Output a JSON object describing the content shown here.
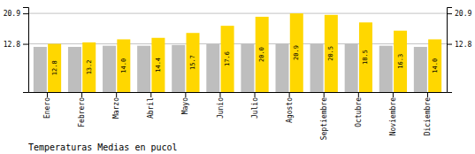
{
  "chart_data": {
    "type": "bar",
    "title": "Temperaturas Medias en pucol",
    "categories": [
      "Enero",
      "Febrero",
      "Marzo",
      "Abril",
      "Mayo",
      "Junio",
      "Julio",
      "Agosto",
      "Septiembre",
      "Octubre",
      "Noviembre",
      "Diciembre"
    ],
    "series": [
      {
        "color": "#BEBEBE",
        "values": [
          12.0,
          12.0,
          12.3,
          12.3,
          12.5,
          12.7,
          12.8,
          12.8,
          12.8,
          12.8,
          12.3,
          12.0
        ]
      },
      {
        "color": "#FFD700",
        "values": [
          12.8,
          13.2,
          14.0,
          14.4,
          15.7,
          17.6,
          20.0,
          20.9,
          20.5,
          18.5,
          16.3,
          14.0
        ],
        "data_labels": true,
        "value_labels": [
          "12.8",
          "13.2",
          "14.0",
          "14.4",
          "15.7",
          "17.6",
          "20.0",
          "20.9",
          "20.5",
          "18.5",
          "16.3",
          "14.0"
        ]
      }
    ],
    "ylim": [
      0,
      22.572
    ],
    "yticks": [
      12.8,
      20.9
    ],
    "y2lim": [
      0,
      22.572
    ],
    "y2ticks": [
      12.8,
      20.9
    ],
    "grid": true
  }
}
